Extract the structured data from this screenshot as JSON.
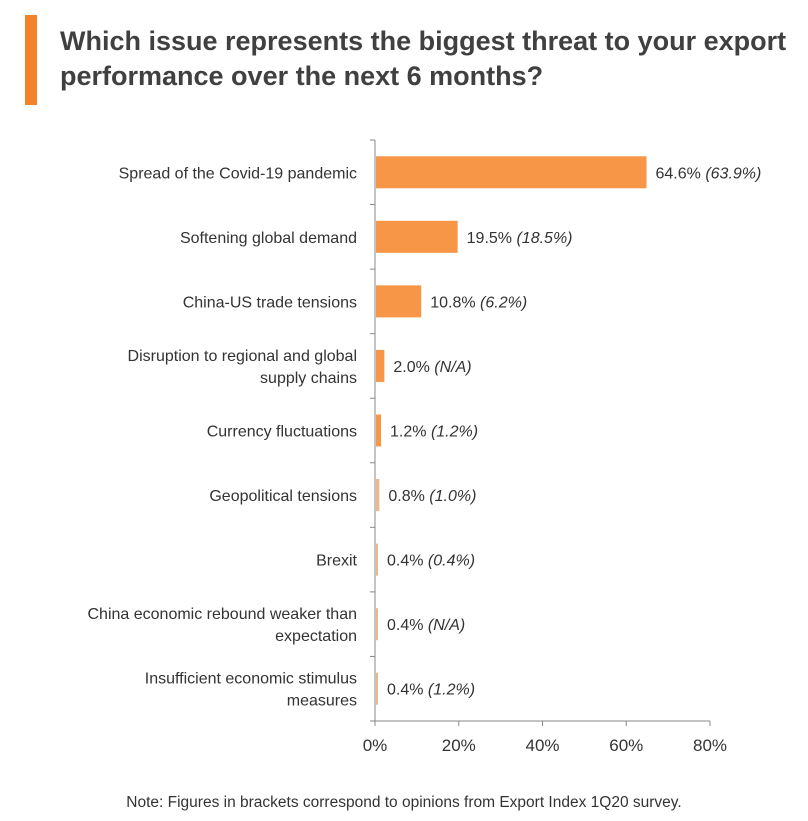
{
  "title": "Which issue represents the biggest threat to your export performance over the next 6 months?",
  "note": "Note: Figures in brackets correspond to opinions from Export Index 1Q20 survey.",
  "colors": {
    "bar": "#F79646",
    "accent": "#F4822A"
  },
  "chart_data": {
    "type": "bar",
    "orientation": "horizontal",
    "categories": [
      [
        "Spread of the Covid-19 pandemic"
      ],
      [
        "Softening global demand"
      ],
      [
        "China-US trade tensions"
      ],
      [
        "Disruption to regional and global",
        "supply chains"
      ],
      [
        "Currency fluctuations"
      ],
      [
        "Geopolitical tensions"
      ],
      [
        "Brexit"
      ],
      [
        "China economic rebound weaker than",
        "expectation"
      ],
      [
        "Insufficient economic stimulus",
        "measures"
      ]
    ],
    "values": [
      64.6,
      19.5,
      10.8,
      2.0,
      1.2,
      0.8,
      0.4,
      0.4,
      0.4
    ],
    "data_labels": [
      "64.6%",
      "19.5%",
      "10.8%",
      "2.0%",
      "1.2%",
      "0.8%",
      "0.4%",
      "0.4%",
      "0.4%"
    ],
    "previous_labels": [
      "(63.9%)",
      "(18.5%)",
      "(6.2%)",
      "(N/A)",
      "(1.2%)",
      "(1.0%)",
      "(0.4%)",
      "(N/A)",
      "(1.2%)"
    ],
    "xlim": [
      0,
      80
    ],
    "xticks": [
      "0%",
      "20%",
      "40%",
      "60%",
      "80%"
    ],
    "grid": false
  }
}
